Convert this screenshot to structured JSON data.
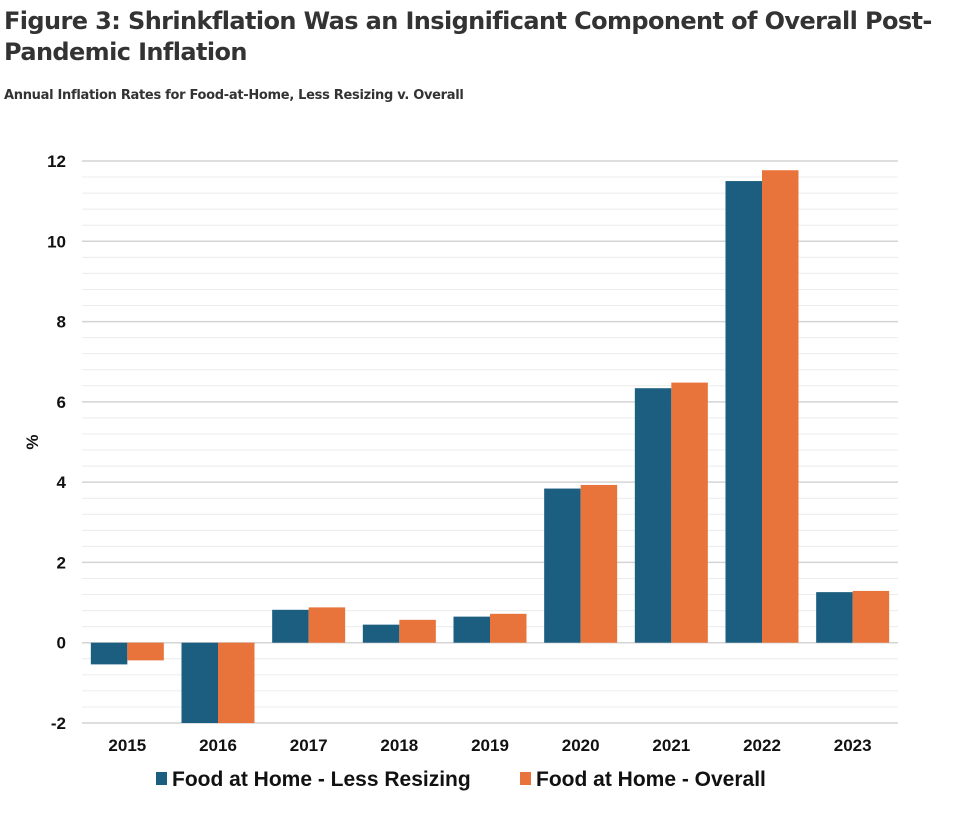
{
  "header": {
    "title": "Figure 3: Shrinkflation Was an Insignificant Component of Overall Post-Pandemic Inflation",
    "subtitle": "Annual Inflation Rates for Food-at-Home, Less Resizing v. Overall"
  },
  "chart_data": {
    "type": "bar",
    "title": "Figure 3: Shrinkflation Was an Insignificant Component of Overall Post-Pandemic Inflation",
    "subtitle": "Annual Inflation Rates for Food-at-Home, Less Resizing v. Overall",
    "xlabel": "",
    "ylabel": "%",
    "categories": [
      "2015",
      "2016",
      "2017",
      "2018",
      "2019",
      "2020",
      "2021",
      "2022",
      "2023"
    ],
    "series": [
      {
        "name": "Food at Home - Less Resizing",
        "color": "#1b5e80",
        "values": [
          -0.54,
          -2.0,
          0.82,
          0.45,
          0.65,
          3.84,
          6.34,
          11.5,
          1.26
        ]
      },
      {
        "name": "Food at Home - Overall",
        "color": "#e8743b",
        "values": [
          -0.44,
          -2.0,
          0.88,
          0.57,
          0.72,
          3.93,
          6.48,
          11.77,
          1.29
        ]
      }
    ],
    "ylim": [
      -2,
      12
    ],
    "yticks": [
      "-2",
      "0",
      "2",
      "4",
      "6",
      "8",
      "10",
      "12"
    ],
    "ytick_values": [
      -2,
      0,
      2,
      4,
      6,
      8,
      10,
      12
    ],
    "minor_grid_step": 0.4,
    "grid": true,
    "legend_position": "bottom"
  }
}
